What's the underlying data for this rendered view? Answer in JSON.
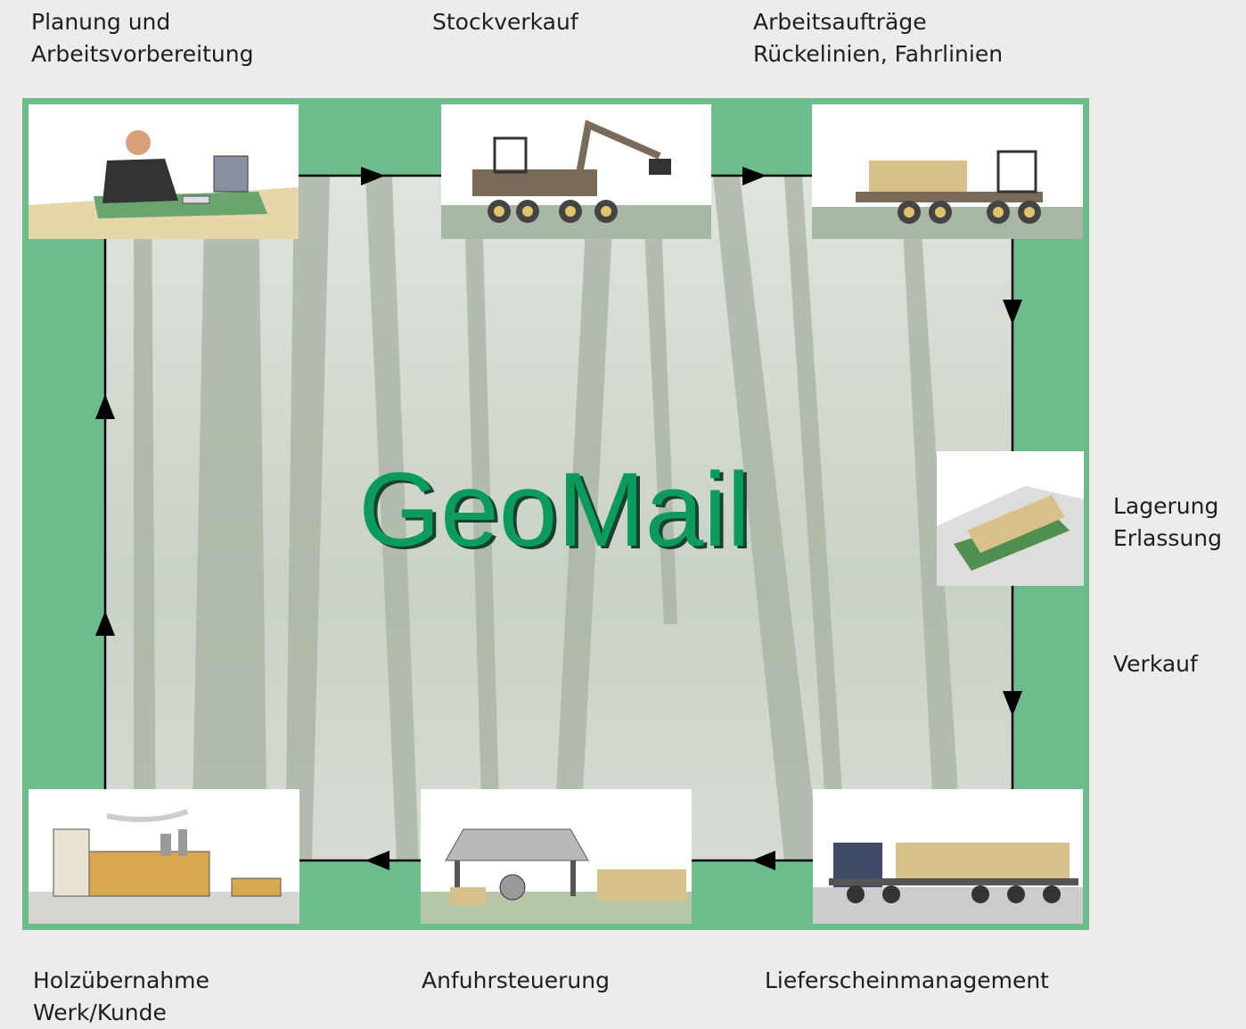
{
  "title": "GeoMail",
  "nodes": [
    {
      "label": [
        "Planung und",
        "Arbeitsvorbereitung"
      ]
    },
    {
      "label": [
        "Stockverkauf"
      ]
    },
    {
      "label": [
        "Arbeitsaufträge",
        "Rückelinien, Fahrlinien"
      ]
    },
    {
      "label": [
        "Lagerung",
        "Erlassung"
      ]
    },
    {
      "label": [
        "Verkauf"
      ]
    },
    {
      "label": [
        "Lieferscheinmanagement"
      ]
    },
    {
      "label": [
        "Anfuhrsteuerung"
      ]
    },
    {
      "label": [
        "Holzübernahme",
        "Werk/Kunde"
      ]
    }
  ]
}
